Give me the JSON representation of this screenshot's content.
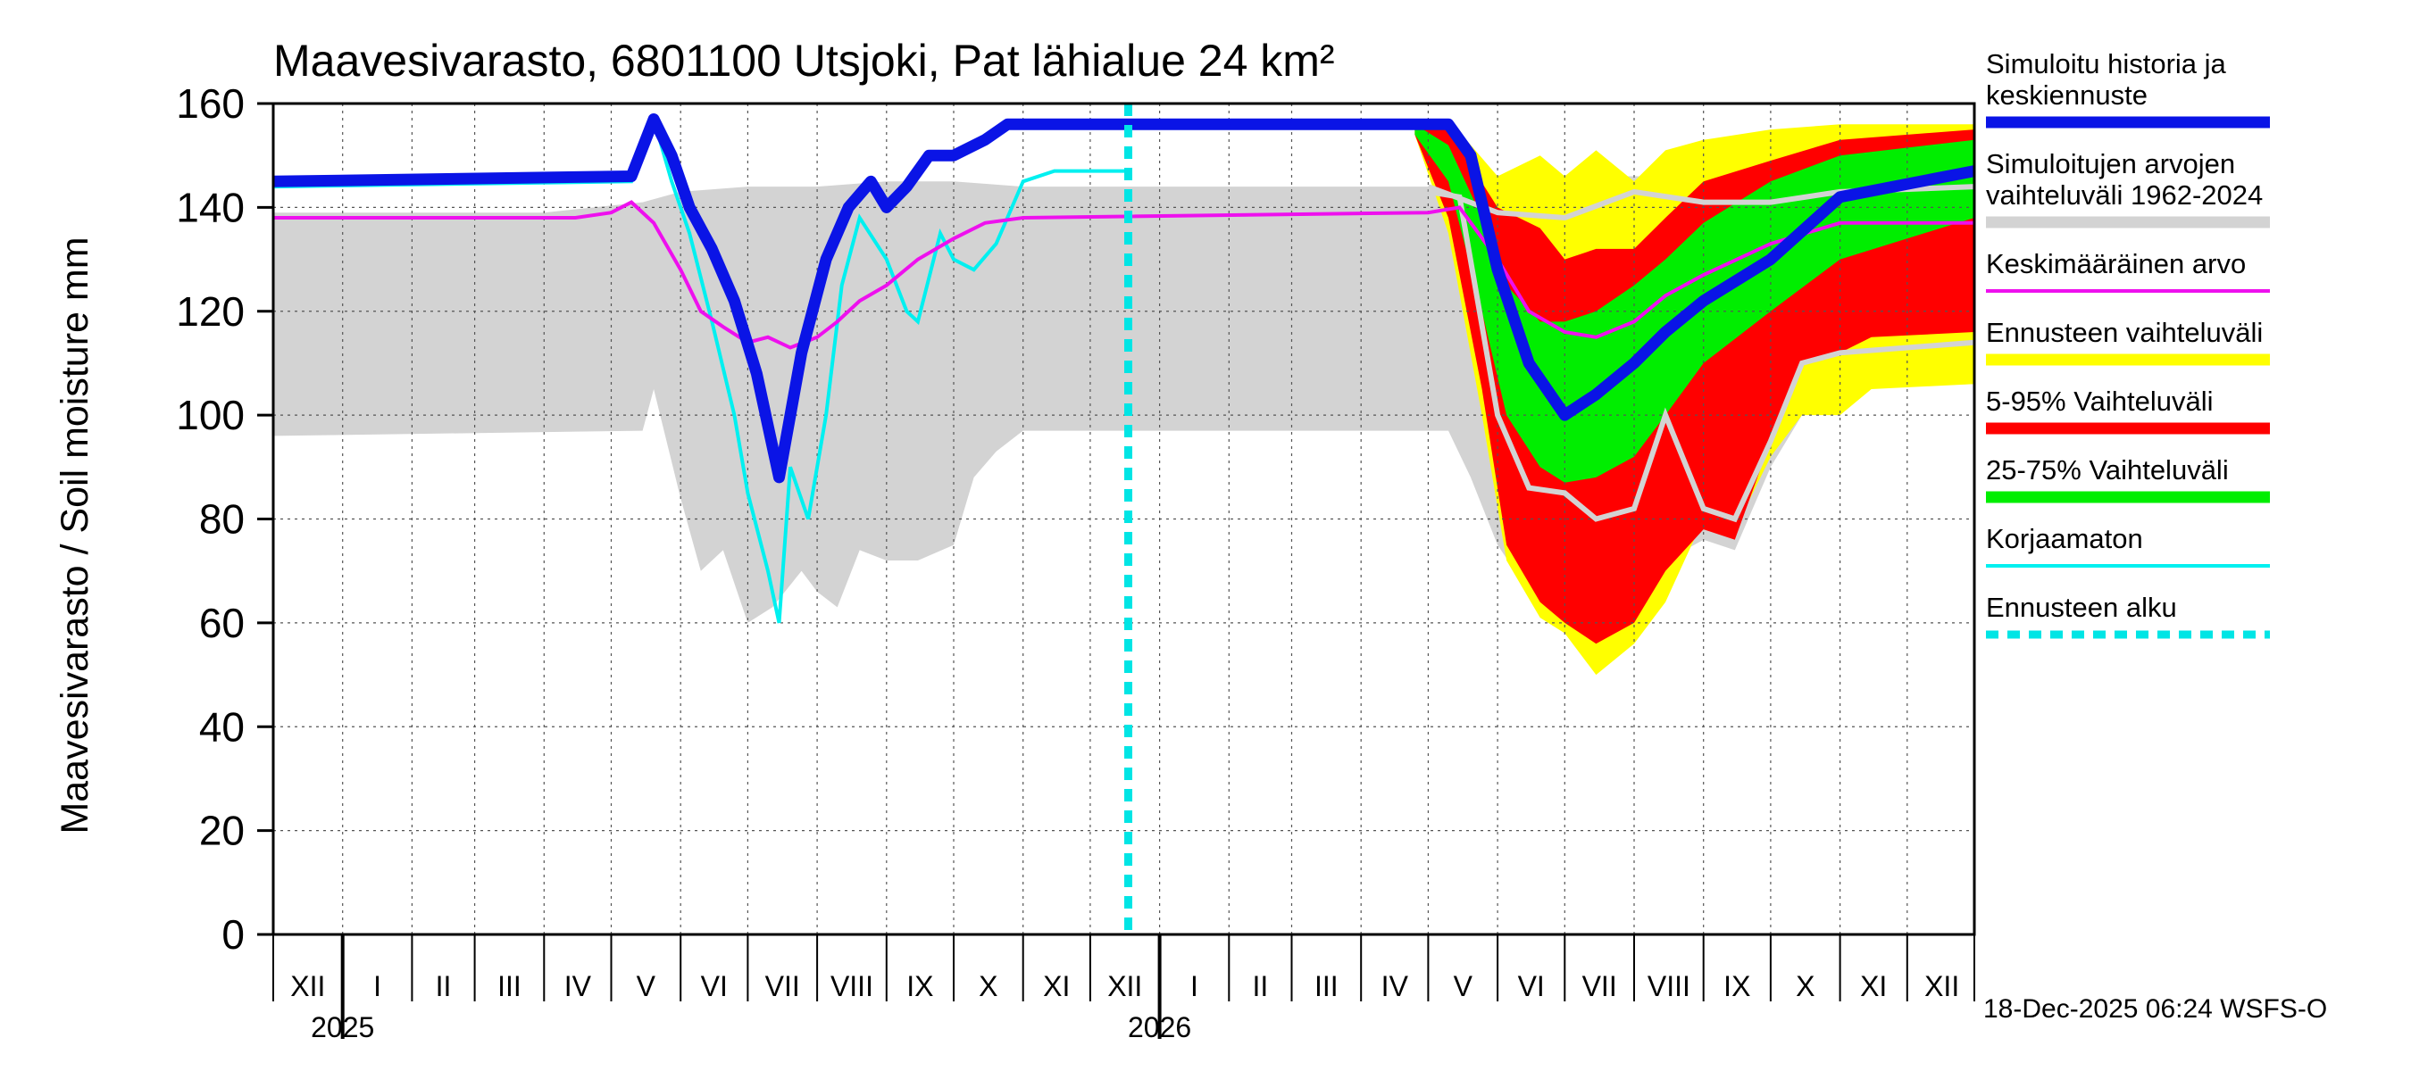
{
  "chart_data": {
    "type": "area",
    "title": "Maavesivarasto, 6801100 Utsjoki, Pat lähialue 24 km²",
    "ylabel": "Maavesivarasto / Soil moisture   mm",
    "ylim": [
      0,
      160
    ],
    "yticks": [
      0,
      20,
      40,
      60,
      80,
      100,
      120,
      140,
      160
    ],
    "grid": true,
    "x_start": "2024-12-01",
    "x_end": "2026-12-31",
    "forecast_start": "2025-12-18",
    "months": [
      "XII",
      "I",
      "II",
      "III",
      "IV",
      "V",
      "VI",
      "VII",
      "VIII",
      "IX",
      "X",
      "XI",
      "XII",
      "I",
      "II",
      "III",
      "IV",
      "V",
      "VI",
      "VII",
      "VIII",
      "IX",
      "X",
      "XI",
      "XII"
    ],
    "years": [
      {
        "label": "2025",
        "start": "2025-01-01"
      },
      {
        "label": "2026",
        "start": "2026-01-01"
      }
    ],
    "legend": [
      {
        "label": [
          "Simuloitu historia ja",
          "keskiennuste"
        ],
        "color": "#0a14e6",
        "style": "thick"
      },
      {
        "label": [
          "Simuloitujen arvojen",
          "vaihteluväli 1962-2024"
        ],
        "color": "#d3d3d3",
        "style": "thick"
      },
      {
        "label": [
          "Keskimääräinen arvo"
        ],
        "color": "#ee10ee",
        "style": "thin"
      },
      {
        "label": [
          "Ennusteen vaihteluväli"
        ],
        "color": "#ffff00",
        "style": "thick"
      },
      {
        "label": [
          "5-95% Vaihteluväli"
        ],
        "color": "#ff0000",
        "style": "thick"
      },
      {
        "label": [
          "25-75% Vaihteluväli"
        ],
        "color": "#00ee00",
        "style": "thick"
      },
      {
        "label": [
          "Korjaamaton"
        ],
        "color": "#00f0f0",
        "style": "thin"
      },
      {
        "label": [
          "Ennusteen alku"
        ],
        "color": "#00e5e5",
        "style": "dashed"
      }
    ],
    "series": {
      "history_range": {
        "name": "Simuloitujen arvojen vaihteluväli 1962-2024",
        "upper": [
          [
            "2024-12-01",
            139
          ],
          [
            "2025-04-01",
            139
          ],
          [
            "2025-05-15",
            141
          ],
          [
            "2025-06-01",
            143
          ],
          [
            "2025-07-01",
            144
          ],
          [
            "2025-08-01",
            144
          ],
          [
            "2025-09-01",
            145
          ],
          [
            "2025-10-01",
            145
          ],
          [
            "2025-11-01",
            144
          ],
          [
            "2026-05-10",
            144
          ],
          [
            "2026-06-01",
            145
          ],
          [
            "2026-07-01",
            146
          ],
          [
            "2026-08-01",
            146
          ],
          [
            "2026-09-01",
            146
          ],
          [
            "2026-10-01",
            146
          ],
          [
            "2026-12-31",
            146
          ]
        ],
        "lower": [
          [
            "2024-12-01",
            96
          ],
          [
            "2025-05-15",
            97
          ],
          [
            "2025-05-20",
            105
          ],
          [
            "2025-06-01",
            84
          ],
          [
            "2025-06-10",
            70
          ],
          [
            "2025-06-20",
            74
          ],
          [
            "2025-07-01",
            60
          ],
          [
            "2025-07-12",
            63
          ],
          [
            "2025-07-25",
            70
          ],
          [
            "2025-08-01",
            66
          ],
          [
            "2025-08-10",
            63
          ],
          [
            "2025-08-20",
            74
          ],
          [
            "2025-09-01",
            72
          ],
          [
            "2025-09-15",
            72
          ],
          [
            "2025-10-01",
            75
          ],
          [
            "2025-10-10",
            88
          ],
          [
            "2025-10-20",
            93
          ],
          [
            "2025-11-01",
            97
          ],
          [
            "2026-05-10",
            97
          ],
          [
            "2026-05-20",
            88
          ],
          [
            "2026-06-01",
            75
          ],
          [
            "2026-06-15",
            66
          ],
          [
            "2026-07-01",
            67
          ],
          [
            "2026-07-15",
            64
          ],
          [
            "2026-08-01",
            70
          ],
          [
            "2026-08-15",
            72
          ],
          [
            "2026-09-01",
            76
          ],
          [
            "2026-09-15",
            74
          ],
          [
            "2026-10-01",
            90
          ],
          [
            "2026-10-15",
            100
          ],
          [
            "2026-11-01",
            105
          ],
          [
            "2026-12-31",
            106
          ]
        ]
      },
      "forecast_range": {
        "name": "Ennusteen vaihteluväli",
        "upper": [
          [
            "2026-04-25",
            156
          ],
          [
            "2026-05-10",
            157
          ],
          [
            "2026-06-01",
            146
          ],
          [
            "2026-06-20",
            150
          ],
          [
            "2026-07-01",
            146
          ],
          [
            "2026-07-15",
            151
          ],
          [
            "2026-08-01",
            145
          ],
          [
            "2026-08-15",
            151
          ],
          [
            "2026-09-01",
            153
          ],
          [
            "2026-10-01",
            155
          ],
          [
            "2026-11-01",
            156
          ],
          [
            "2026-12-31",
            156
          ]
        ],
        "lower": [
          [
            "2026-04-25",
            154
          ],
          [
            "2026-05-10",
            135
          ],
          [
            "2026-05-25",
            100
          ],
          [
            "2026-06-05",
            72
          ],
          [
            "2026-06-20",
            61
          ],
          [
            "2026-07-01",
            58
          ],
          [
            "2026-07-15",
            50
          ],
          [
            "2026-08-01",
            56
          ],
          [
            "2026-08-15",
            64
          ],
          [
            "2026-09-01",
            80
          ],
          [
            "2026-09-15",
            78
          ],
          [
            "2026-10-01",
            92
          ],
          [
            "2026-10-15",
            100
          ],
          [
            "2026-11-01",
            100
          ],
          [
            "2026-11-15",
            105
          ],
          [
            "2026-12-31",
            106
          ]
        ]
      },
      "p5_95": {
        "name": "5-95% Vaihteluväli",
        "upper": [
          [
            "2026-04-25",
            156
          ],
          [
            "2026-05-10",
            155
          ],
          [
            "2026-06-01",
            140
          ],
          [
            "2026-06-20",
            136
          ],
          [
            "2026-07-01",
            130
          ],
          [
            "2026-07-15",
            132
          ],
          [
            "2026-08-01",
            132
          ],
          [
            "2026-08-15",
            138
          ],
          [
            "2026-09-01",
            145
          ],
          [
            "2026-10-01",
            149
          ],
          [
            "2026-11-01",
            153
          ],
          [
            "2026-12-31",
            155
          ]
        ],
        "lower": [
          [
            "2026-04-25",
            154
          ],
          [
            "2026-05-10",
            138
          ],
          [
            "2026-05-25",
            105
          ],
          [
            "2026-06-05",
            75
          ],
          [
            "2026-06-20",
            64
          ],
          [
            "2026-07-01",
            60
          ],
          [
            "2026-07-15",
            56
          ],
          [
            "2026-08-01",
            60
          ],
          [
            "2026-08-15",
            70
          ],
          [
            "2026-09-01",
            78
          ],
          [
            "2026-09-15",
            76
          ],
          [
            "2026-10-01",
            95
          ],
          [
            "2026-10-15",
            110
          ],
          [
            "2026-11-01",
            112
          ],
          [
            "2026-11-15",
            115
          ],
          [
            "2026-12-31",
            116
          ]
        ]
      },
      "p25_75": {
        "name": "25-75% Vaihteluväli",
        "upper": [
          [
            "2026-04-25",
            156
          ],
          [
            "2026-05-10",
            152
          ],
          [
            "2026-05-25",
            138
          ],
          [
            "2026-06-05",
            125
          ],
          [
            "2026-06-20",
            118
          ],
          [
            "2026-07-01",
            118
          ],
          [
            "2026-07-15",
            120
          ],
          [
            "2026-08-01",
            125
          ],
          [
            "2026-08-15",
            130
          ],
          [
            "2026-09-01",
            137
          ],
          [
            "2026-10-01",
            145
          ],
          [
            "2026-11-01",
            150
          ],
          [
            "2026-12-31",
            153
          ]
        ],
        "lower": [
          [
            "2026-04-25",
            154
          ],
          [
            "2026-05-10",
            145
          ],
          [
            "2026-05-25",
            120
          ],
          [
            "2026-06-05",
            100
          ],
          [
            "2026-06-20",
            90
          ],
          [
            "2026-07-01",
            87
          ],
          [
            "2026-07-15",
            88
          ],
          [
            "2026-08-01",
            92
          ],
          [
            "2026-08-15",
            100
          ],
          [
            "2026-09-01",
            110
          ],
          [
            "2026-10-01",
            120
          ],
          [
            "2026-11-01",
            130
          ],
          [
            "2026-12-31",
            138
          ]
        ]
      },
      "mean": {
        "name": "Keskimääräinen arvo",
        "points": [
          [
            "2024-12-01",
            138
          ],
          [
            "2025-04-15",
            138
          ],
          [
            "2025-05-01",
            139
          ],
          [
            "2025-05-10",
            141
          ],
          [
            "2025-05-20",
            137
          ],
          [
            "2025-06-01",
            128
          ],
          [
            "2025-06-10",
            120
          ],
          [
            "2025-06-20",
            117
          ],
          [
            "2025-07-01",
            114
          ],
          [
            "2025-07-10",
            115
          ],
          [
            "2025-07-20",
            113
          ],
          [
            "2025-08-01",
            115
          ],
          [
            "2025-08-10",
            118
          ],
          [
            "2025-08-20",
            122
          ],
          [
            "2025-09-01",
            125
          ],
          [
            "2025-09-15",
            130
          ],
          [
            "2025-10-01",
            134
          ],
          [
            "2025-10-15",
            137
          ],
          [
            "2025-11-01",
            138
          ],
          [
            "2026-05-01",
            139
          ],
          [
            "2026-05-15",
            140
          ],
          [
            "2026-06-01",
            130
          ],
          [
            "2026-06-15",
            120
          ],
          [
            "2026-07-01",
            116
          ],
          [
            "2026-07-15",
            115
          ],
          [
            "2026-08-01",
            118
          ],
          [
            "2026-08-15",
            123
          ],
          [
            "2026-09-01",
            127
          ],
          [
            "2026-10-01",
            133
          ],
          [
            "2026-11-01",
            137
          ],
          [
            "2026-12-31",
            137
          ]
        ]
      },
      "uncorrected": {
        "name": "Korjaamaton",
        "points": [
          [
            "2024-12-01",
            144
          ],
          [
            "2025-05-10",
            145
          ],
          [
            "2025-05-20",
            157
          ],
          [
            "2025-05-28",
            145
          ],
          [
            "2025-06-05",
            135
          ],
          [
            "2025-06-15",
            118
          ],
          [
            "2025-06-25",
            100
          ],
          [
            "2025-07-01",
            85
          ],
          [
            "2025-07-10",
            70
          ],
          [
            "2025-07-15",
            60
          ],
          [
            "2025-07-20",
            90
          ],
          [
            "2025-07-28",
            80
          ],
          [
            "2025-08-05",
            100
          ],
          [
            "2025-08-12",
            125
          ],
          [
            "2025-08-20",
            138
          ],
          [
            "2025-09-01",
            130
          ],
          [
            "2025-09-10",
            120
          ],
          [
            "2025-09-15",
            118
          ],
          [
            "2025-09-25",
            135
          ],
          [
            "2025-10-01",
            130
          ],
          [
            "2025-10-10",
            128
          ],
          [
            "2025-10-20",
            133
          ],
          [
            "2025-11-01",
            145
          ],
          [
            "2025-11-15",
            147
          ],
          [
            "2025-12-18",
            147
          ]
        ]
      },
      "simulated": {
        "name": "Simuloitu historia ja keskiennuste",
        "points": [
          [
            "2024-12-01",
            145
          ],
          [
            "2025-05-10",
            146
          ],
          [
            "2025-05-20",
            157
          ],
          [
            "2025-05-28",
            150
          ],
          [
            "2025-06-05",
            140
          ],
          [
            "2025-06-15",
            132
          ],
          [
            "2025-06-25",
            122
          ],
          [
            "2025-07-05",
            108
          ],
          [
            "2025-07-15",
            88
          ],
          [
            "2025-07-25",
            112
          ],
          [
            "2025-08-05",
            130
          ],
          [
            "2025-08-15",
            140
          ],
          [
            "2025-08-25",
            145
          ],
          [
            "2025-09-01",
            140
          ],
          [
            "2025-09-10",
            144
          ],
          [
            "2025-09-20",
            150
          ],
          [
            "2025-10-01",
            150
          ],
          [
            "2025-10-15",
            153
          ],
          [
            "2025-10-25",
            156
          ],
          [
            "2026-05-10",
            156
          ],
          [
            "2026-05-20",
            150
          ],
          [
            "2026-06-01",
            128
          ],
          [
            "2026-06-15",
            110
          ],
          [
            "2026-07-01",
            100
          ],
          [
            "2026-07-15",
            104
          ],
          [
            "2026-08-01",
            110
          ],
          [
            "2026-08-15",
            116
          ],
          [
            "2026-09-01",
            122
          ],
          [
            "2026-10-01",
            130
          ],
          [
            "2026-11-01",
            142
          ],
          [
            "2026-12-31",
            147
          ]
        ]
      },
      "gray_median": {
        "name": "gray forecast median",
        "points": [
          [
            "2026-05-01",
            143
          ],
          [
            "2026-05-15",
            142
          ],
          [
            "2026-06-01",
            100
          ],
          [
            "2026-06-15",
            86
          ],
          [
            "2026-07-01",
            85
          ],
          [
            "2026-07-15",
            80
          ],
          [
            "2026-08-01",
            82
          ],
          [
            "2026-08-15",
            100
          ],
          [
            "2026-09-01",
            82
          ],
          [
            "2026-09-15",
            80
          ],
          [
            "2026-10-01",
            95
          ],
          [
            "2026-10-15",
            110
          ],
          [
            "2026-11-01",
            112
          ],
          [
            "2026-12-31",
            114
          ]
        ]
      },
      "gray_upper_line": {
        "name": "gray forecast upper",
        "points": [
          [
            "2026-05-01",
            144
          ],
          [
            "2026-06-01",
            139
          ],
          [
            "2026-07-01",
            138
          ],
          [
            "2026-08-01",
            143
          ],
          [
            "2026-09-01",
            141
          ],
          [
            "2026-10-01",
            141
          ],
          [
            "2026-11-01",
            143
          ],
          [
            "2026-12-31",
            144
          ]
        ]
      }
    }
  },
  "footer": "18-Dec-2025 06:24 WSFS-O"
}
